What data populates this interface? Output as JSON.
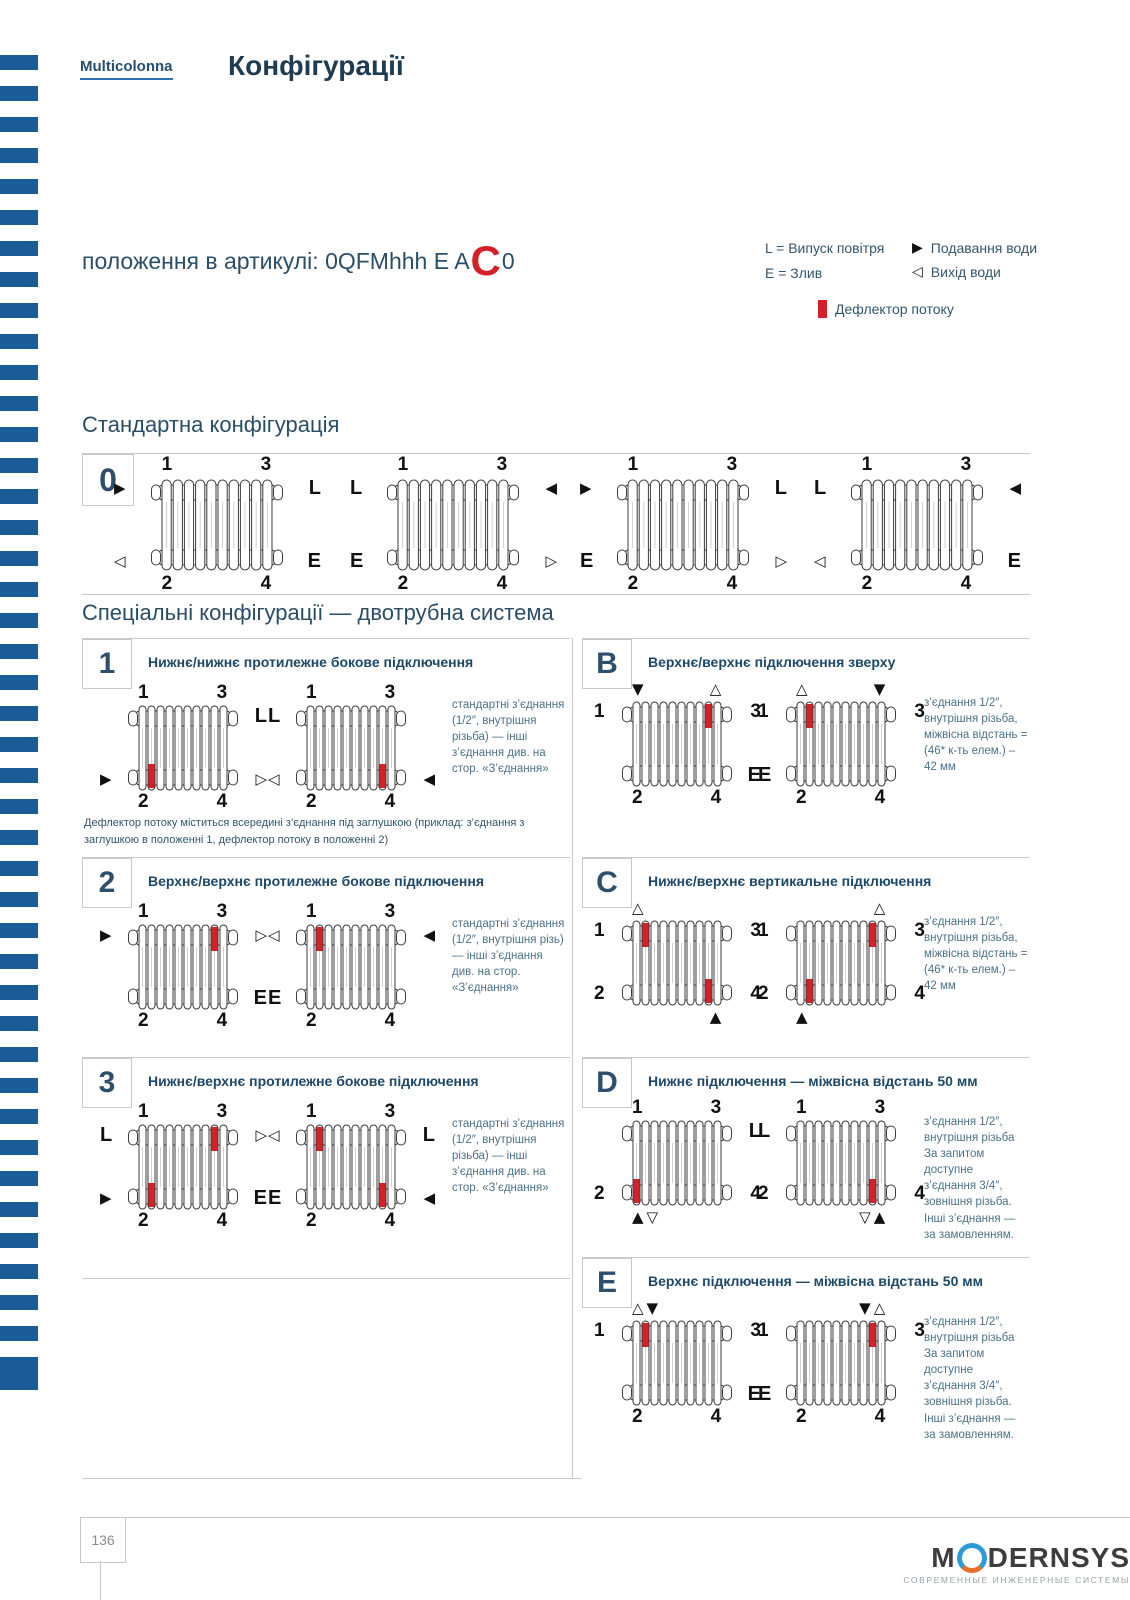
{
  "page": {
    "brand": "Multicolonna",
    "title": "Конфігурації",
    "article": {
      "prefix": "положення в артикулі: 0QFMhhh E A",
      "highlight": "C",
      "suffix": "0"
    }
  },
  "legend": {
    "vent": "L = Випуск повітря",
    "drain": "E = Злив",
    "supply": "Подавання води",
    "outlet": "Вихід води",
    "deflector": "Дефлектор потоку",
    "supply_icon": "triangle-right-filled",
    "outlet_icon": "triangle-left-outline",
    "deflector_icon": "red-bar"
  },
  "standard": {
    "title": "Стандартна конфігурація",
    "label": "0",
    "radiators": [
      {
        "al": [
          "1"
        ],
        "ar": [
          "3"
        ],
        "stl": [
          "arr-r-f"
        ],
        "str": [
          "L"
        ],
        "sbl": [
          "arr-l-o"
        ],
        "sbr": [
          "E"
        ],
        "bl": [
          "2"
        ],
        "br": [
          "4"
        ],
        "deflectors": []
      },
      {
        "al": [
          "1"
        ],
        "ar": [
          "3"
        ],
        "stl": [
          "L"
        ],
        "str": [
          "arr-l-f"
        ],
        "sbl": [
          "E"
        ],
        "sbr": [
          "arr-r-o"
        ],
        "bl": [
          "2"
        ],
        "br": [
          "4"
        ],
        "deflectors": []
      },
      {
        "al": [
          "1"
        ],
        "ar": [
          "3"
        ],
        "stl": [
          "arr-r-f"
        ],
        "str": [
          "L"
        ],
        "sbl": [
          "E"
        ],
        "sbr": [
          "arr-r-o"
        ],
        "bl": [
          "2"
        ],
        "br": [
          "4"
        ],
        "deflectors": []
      },
      {
        "al": [
          "1"
        ],
        "ar": [
          "3"
        ],
        "stl": [
          "L"
        ],
        "str": [
          "arr-l-f"
        ],
        "sbl": [
          "arr-l-o"
        ],
        "sbr": [
          "E"
        ],
        "bl": [
          "2"
        ],
        "br": [
          "4"
        ],
        "deflectors": []
      }
    ]
  },
  "special": {
    "title": "Спеціальні конфігурації — двотрубна система",
    "blocks": [
      {
        "id": "1",
        "column": "left",
        "title": "Нижнє/нижнє протилежне бокове підключення",
        "side_note": "стандартні з’єднання (1/2″, внутрішня різьба) — інші з’єднання див. на стор. «З’єднання»",
        "footnote": "Дефлектор потоку міститься всередині з’єднання під заглушкою (приклад: з’єднання з заглушкою в положенні 1, дефлектор потоку в положенні 2)",
        "radiators": [
          {
            "al": [
              "1"
            ],
            "ar": [
              "3"
            ],
            "str": [
              "L"
            ],
            "sbl": [
              "arr-r-f"
            ],
            "sbr": [
              "arr-r-o"
            ],
            "bl": [
              "2"
            ],
            "br": [
              "4"
            ],
            "deflectors": [
              {
                "tube": 2,
                "pos": "bottom"
              }
            ]
          },
          {
            "al": [
              "1"
            ],
            "ar": [
              "3"
            ],
            "stl": [
              "L"
            ],
            "sbl": [
              "arr-l-o"
            ],
            "sbr": [
              "arr-l-f"
            ],
            "bl": [
              "2"
            ],
            "br": [
              "4"
            ],
            "deflectors": [
              {
                "tube": 9,
                "pos": "bottom"
              }
            ]
          }
        ]
      },
      {
        "id": "2",
        "column": "left",
        "title": "Верхнє/верхнє протилежне бокове підключення",
        "side_note": "стандартні з’єднання (1/2″, внутрішня різь) — інші з’єднання див. на стор. «З’єднання»",
        "radiators": [
          {
            "al": [
              "1"
            ],
            "ar": [
              "3"
            ],
            "stl": [
              "arr-r-f"
            ],
            "str": [
              "arr-r-o"
            ],
            "sbr": [
              "E"
            ],
            "bl": [
              "2"
            ],
            "br": [
              "4"
            ],
            "deflectors": [
              {
                "tube": 9,
                "pos": "top"
              }
            ]
          },
          {
            "al": [
              "1"
            ],
            "ar": [
              "3"
            ],
            "stl": [
              "arr-l-o"
            ],
            "str": [
              "arr-l-f"
            ],
            "sbl": [
              "E"
            ],
            "bl": [
              "2"
            ],
            "br": [
              "4"
            ],
            "deflectors": [
              {
                "tube": 2,
                "pos": "top"
              }
            ]
          }
        ]
      },
      {
        "id": "3",
        "column": "left",
        "title": "Нижнє/верхнє протилежне бокове підключення",
        "side_note": "стандартні з’єднання (1/2″, внутрішня різьба) — інші з’єднання див. на стор. «З’єднання»",
        "radiators": [
          {
            "al": [
              "1"
            ],
            "ar": [
              "3"
            ],
            "stl": [
              "L"
            ],
            "str": [
              "arr-r-o"
            ],
            "sbl": [
              "arr-r-f"
            ],
            "sbr": [
              "E"
            ],
            "bl": [
              "2"
            ],
            "br": [
              "4"
            ],
            "deflectors": [
              {
                "tube": 9,
                "pos": "top"
              },
              {
                "tube": 2,
                "pos": "bottom"
              }
            ]
          },
          {
            "al": [
              "1"
            ],
            "ar": [
              "3"
            ],
            "stl": [
              "arr-l-o"
            ],
            "str": [
              "L"
            ],
            "sbl": [
              "E"
            ],
            "sbr": [
              "arr-l-f"
            ],
            "bl": [
              "2"
            ],
            "br": [
              "4"
            ],
            "deflectors": [
              {
                "tube": 2,
                "pos": "top"
              },
              {
                "tube": 9,
                "pos": "bottom"
              }
            ]
          }
        ]
      },
      {
        "id": "B",
        "column": "right",
        "title": "Верхнє/верхнє підключення зверху",
        "side_note": "з’єднання 1/2″, внутрішня різьба, міжвісна відстань = (46* к-ть елем.) – 42 мм",
        "radiators": [
          {
            "al": [
              "arr-d-f"
            ],
            "ar": [
              "arr-u-o"
            ],
            "stl": [
              "1"
            ],
            "str": [
              "3"
            ],
            "sbr": [
              "E"
            ],
            "bl": [
              "2"
            ],
            "br": [
              "4"
            ],
            "deflectors": [
              {
                "tube": 9,
                "pos": "top"
              }
            ]
          },
          {
            "al": [
              "arr-u-o"
            ],
            "ar": [
              "arr-d-f"
            ],
            "stl": [
              "1"
            ],
            "str": [
              "3"
            ],
            "sbl": [
              "E"
            ],
            "bl": [
              "2"
            ],
            "br": [
              "4"
            ],
            "deflectors": [
              {
                "tube": 2,
                "pos": "top"
              }
            ]
          }
        ]
      },
      {
        "id": "C",
        "column": "right",
        "title": "Нижнє/верхнє вертикальне підключення",
        "side_note": "з’єднання 1/2″, внутрішня різьба, міжвісна відстань = (46* к-ть елем.) – 42 мм",
        "radiators": [
          {
            "al": [
              "arr-u-o"
            ],
            "stl": [
              "1"
            ],
            "str": [
              "3"
            ],
            "sbl": [
              "2"
            ],
            "sbr": [
              "4"
            ],
            "br": [
              "arr-u-f"
            ],
            "deflectors": [
              {
                "tube": 2,
                "pos": "top"
              },
              {
                "tube": 9,
                "pos": "bottom"
              }
            ]
          },
          {
            "ar": [
              "arr-u-o"
            ],
            "stl": [
              "1"
            ],
            "str": [
              "3"
            ],
            "sbl": [
              "2"
            ],
            "sbr": [
              "4"
            ],
            "bl": [
              "arr-u-f"
            ],
            "deflectors": [
              {
                "tube": 9,
                "pos": "top"
              },
              {
                "tube": 2,
                "pos": "bottom"
              }
            ]
          }
        ]
      },
      {
        "id": "D",
        "column": "right",
        "title": "Нижнє підключення — міжвісна відстань 50 мм",
        "side_note": "з’єднання 1/2″, внутрішня різьба За запитом доступне з’єднання 3/4″, зовнішня різьба. Інші з’єднання — за замовленням.",
        "radiators": [
          {
            "al": [
              "1"
            ],
            "ar": [
              "3"
            ],
            "str": [
              "L"
            ],
            "sbl": [
              "2"
            ],
            "sbr": [
              "4"
            ],
            "bl": [
              "arr-u-f",
              "arr-d-o"
            ],
            "deflectors": [
              {
                "tube": 1,
                "pos": "bottom"
              }
            ]
          },
          {
            "al": [
              "1"
            ],
            "ar": [
              "3"
            ],
            "stl": [
              "L"
            ],
            "sbl": [
              "2"
            ],
            "sbr": [
              "4"
            ],
            "br": [
              "arr-d-o",
              "arr-u-f"
            ],
            "deflectors": [
              {
                "tube": 9,
                "pos": "bottom"
              }
            ]
          }
        ]
      },
      {
        "id": "E",
        "column": "right",
        "title": "Верхнє підключення — міжвісна відстань 50 мм",
        "side_note": "з’єднання 1/2″, внутрішня різьба За запитом доступне з’єднання 3/4″, зовнішня різьба. Інші з’єднання — за замовленням.",
        "radiators": [
          {
            "al": [
              "arr-u-o",
              "arr-d-f"
            ],
            "stl": [
              "1"
            ],
            "str": [
              "3"
            ],
            "sbr": [
              "E"
            ],
            "bl": [
              "2"
            ],
            "br": [
              "4"
            ],
            "deflectors": [
              {
                "tube": 2,
                "pos": "top"
              }
            ]
          },
          {
            "ar": [
              "arr-d-f",
              "arr-u-o"
            ],
            "stl": [
              "1"
            ],
            "str": [
              "3"
            ],
            "sbl": [
              "E"
            ],
            "bl": [
              "2"
            ],
            "br": [
              "4"
            ],
            "deflectors": [
              {
                "tube": 9,
                "pos": "top"
              }
            ]
          }
        ]
      }
    ]
  },
  "footer": {
    "page_number": "136",
    "logo_name_left": "M",
    "logo_name_right": "DERNSYS",
    "logo_o_icon": "circle-blue-orange-icon",
    "logo_tagline": "СОВРЕМЕННЫЕ ИНЖЕНЕРНЫЕ СИСТЕМЫ"
  },
  "colors": {
    "stripe_blue": "#1a5c97",
    "navy_text": "#2a4d66",
    "deflector_red": "#d42027",
    "border_gray": "#c9c9c9",
    "logo_blue": "#2f9bd6",
    "logo_orange": "#e8702a"
  }
}
